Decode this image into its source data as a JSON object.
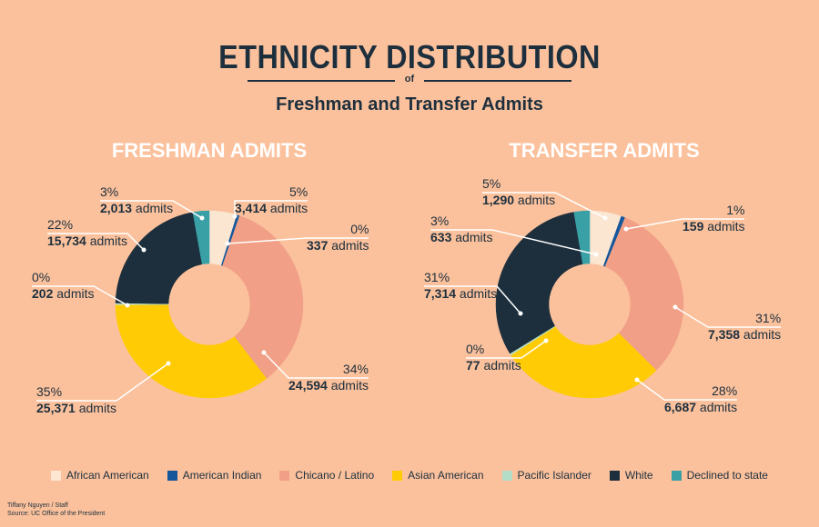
{
  "header": {
    "title": "ETHNICITY DISTRIBUTION",
    "of": "of",
    "subtitle": "Freshman and Transfer Admits"
  },
  "colors": {
    "African American": "#fbe6d2",
    "American Indian": "#15579a",
    "Chicano / Latino": "#f19f86",
    "Asian American": "#ffcb05",
    "Pacific Islander": "#b4ddc8",
    "White": "#1d2f3d",
    "Declined to state": "#39a0a6"
  },
  "legend": [
    "African American",
    "American Indian",
    "Chicano / Latino",
    "Asian American",
    "Pacific Islander",
    "White",
    "Declined to state"
  ],
  "chart_data": [
    {
      "type": "pie",
      "title": "FRESHMAN ADMITS",
      "categories": [
        "African American",
        "American Indian",
        "Chicano / Latino",
        "Asian American",
        "Pacific Islander",
        "White",
        "Declined to state"
      ],
      "values": [
        3414,
        337,
        24594,
        25371,
        202,
        15734,
        2013
      ],
      "labels": [
        {
          "pct": "5%",
          "num": "3,414",
          "unit": "admits"
        },
        {
          "pct": "0%",
          "num": "337",
          "unit": "admits"
        },
        {
          "pct": "34%",
          "num": "24,594",
          "unit": "admits"
        },
        {
          "pct": "35%",
          "num": "25,371",
          "unit": "admits"
        },
        {
          "pct": "0%",
          "num": "202",
          "unit": "admits"
        },
        {
          "pct": "22%",
          "num": "15,734",
          "unit": "admits"
        },
        {
          "pct": "3%",
          "num": "2,013",
          "unit": "admits"
        }
      ]
    },
    {
      "type": "pie",
      "title": "TRANSFER ADMITS",
      "categories": [
        "African American",
        "American Indian",
        "Chicano / Latino",
        "Asian American",
        "Pacific Islander",
        "White",
        "Declined to state"
      ],
      "values": [
        1290,
        159,
        7358,
        6687,
        77,
        7314,
        633
      ],
      "labels": [
        {
          "pct": "5%",
          "num": "1,290",
          "unit": "admits"
        },
        {
          "pct": "1%",
          "num": "159",
          "unit": "admits"
        },
        {
          "pct": "31%",
          "num": "7,358",
          "unit": "admits"
        },
        {
          "pct": "28%",
          "num": "6,687",
          "unit": "admits"
        },
        {
          "pct": "0%",
          "num": "77",
          "unit": "admits"
        },
        {
          "pct": "31%",
          "num": "7,314",
          "unit": "admits"
        },
        {
          "pct": "3%",
          "num": "633",
          "unit": "admits"
        }
      ]
    }
  ],
  "credit": {
    "line1": "Tiffany Nguyen / Staff",
    "line2": "Source: UC Office of the President"
  }
}
